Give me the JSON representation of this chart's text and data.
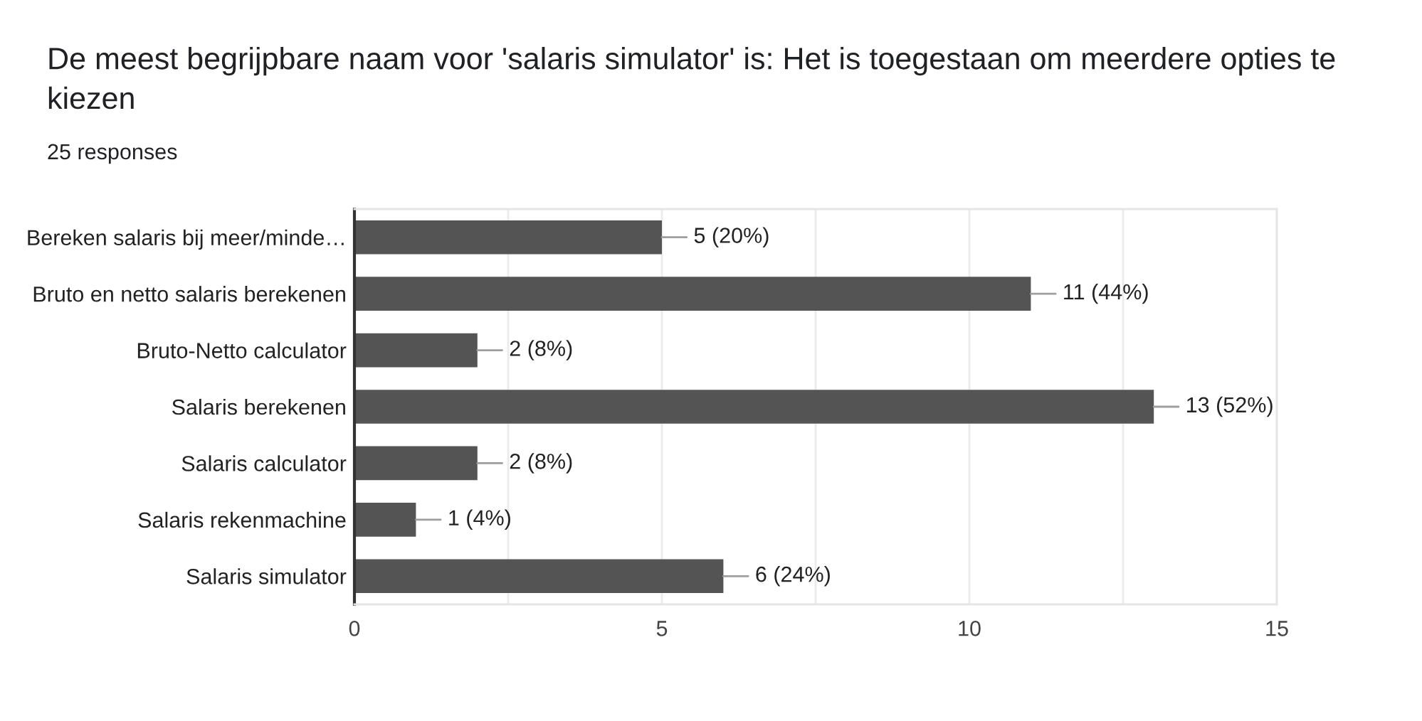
{
  "chart_data": {
    "type": "bar",
    "orientation": "horizontal",
    "title": "De meest begrijpbare naam voor 'salaris simulator' is: Het is toegestaan om meerdere opties te kiezen",
    "subtitle": "25 responses",
    "categories": [
      "Bereken salaris bij meer/minde…",
      "Bruto en netto salaris berekenen",
      "Bruto-Netto calculator",
      "Salaris berekenen",
      "Salaris calculator",
      "Salaris rekenmachine",
      "Salaris simulator"
    ],
    "values": [
      5,
      11,
      2,
      13,
      2,
      1,
      6
    ],
    "color": "#545454",
    "value_labels": [
      "5 (20%)",
      "11 (44%)",
      "2 (8%)",
      "13 (52%)",
      "2 (8%)",
      "1 (4%)",
      "6 (24%)"
    ],
    "xlim": [
      0,
      15
    ],
    "xticks": [
      0,
      {
        "value": 2.5,
        "label": null
      },
      5,
      {
        "value": 7.5,
        "label": null
      },
      10,
      {
        "value": 12.5,
        "label": null
      },
      15
    ],
    "grid": "x"
  }
}
